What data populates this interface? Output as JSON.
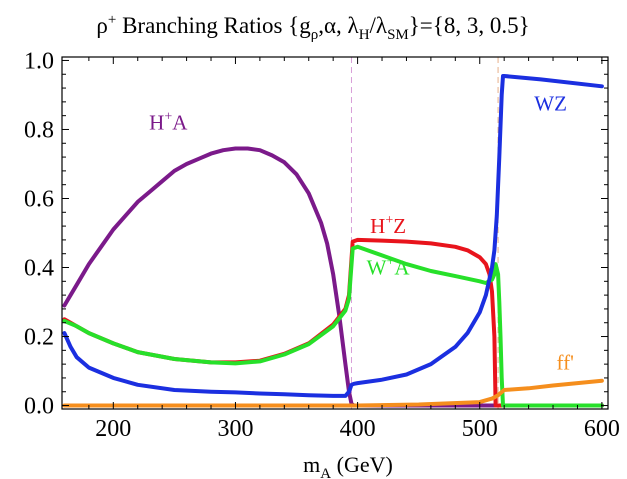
{
  "chart_data": {
    "type": "line",
    "title": "ρ⁺ Branching Ratios {gρ,α, λH/λSM}={8, 3, 0.5}",
    "title_parts": {
      "rho": "ρ",
      "rho_sup": "+",
      "text": " Branching Ratios {g",
      "g_sub": "ρ",
      "mid": ",α, λ",
      "h_sub": "H",
      "slash": "/λ",
      "sm_sub": "SM",
      "end": "}={8, 3, 0.5}"
    },
    "xlabel": "m_A (GeV)",
    "xlabel_parts": {
      "m": "m",
      "sub": "A",
      "rest": " (GeV)"
    },
    "ylabel": "",
    "xlim": [
      158,
      605
    ],
    "ylim": [
      -0.01,
      1.01
    ],
    "x_ticks": [
      200,
      300,
      400,
      500,
      600
    ],
    "y_ticks": [
      0.0,
      0.2,
      0.4,
      0.6,
      0.8,
      1.0
    ],
    "x_tick_labels": [
      "200",
      "300",
      "400",
      "500",
      "600"
    ],
    "y_tick_labels": [
      "0.0",
      "0.2",
      "0.4",
      "0.6",
      "0.8",
      "1.0"
    ],
    "vertical_lines": [
      {
        "x": 395,
        "color": "#d9a0d9"
      },
      {
        "x": 515,
        "color": "#e7b08a"
      }
    ],
    "series": [
      {
        "name": "H⁺A",
        "label_main": "H",
        "label_sup": "+",
        "label_rest": "A",
        "color": "#7b1a8a",
        "label_x": 245,
        "label_y": 0.8,
        "x": [
          160,
          170,
          180,
          190,
          200,
          210,
          220,
          230,
          240,
          250,
          260,
          270,
          280,
          290,
          300,
          310,
          320,
          330,
          340,
          350,
          360,
          370,
          375,
          380,
          385,
          390,
          393,
          395,
          397,
          400,
          420,
          450,
          500,
          550,
          600
        ],
        "y": [
          0.29,
          0.35,
          0.41,
          0.46,
          0.51,
          0.55,
          0.59,
          0.62,
          0.65,
          0.68,
          0.7,
          0.715,
          0.73,
          0.74,
          0.745,
          0.745,
          0.74,
          0.725,
          0.705,
          0.67,
          0.615,
          0.53,
          0.47,
          0.38,
          0.26,
          0.12,
          0.04,
          0.005,
          0.0,
          0.0,
          0.0,
          0.0,
          0.0,
          0.0,
          0.0
        ]
      },
      {
        "name": "H⁺Z",
        "label_main": "H",
        "label_sup": "+",
        "label_rest": "Z",
        "color": "#e8141c",
        "label_x": 425,
        "label_y": 0.5,
        "x": [
          160,
          170,
          180,
          200,
          220,
          250,
          280,
          300,
          320,
          340,
          360,
          380,
          390,
          393,
          396,
          400,
          420,
          440,
          460,
          480,
          490,
          500,
          505,
          508,
          510,
          512,
          513,
          515,
          520,
          550,
          600
        ],
        "y": [
          0.25,
          0.23,
          0.21,
          0.18,
          0.155,
          0.135,
          0.125,
          0.125,
          0.13,
          0.15,
          0.18,
          0.235,
          0.28,
          0.32,
          0.475,
          0.48,
          0.478,
          0.475,
          0.47,
          0.46,
          0.45,
          0.43,
          0.41,
          0.38,
          0.33,
          0.2,
          0.0,
          0.0,
          0.0,
          0.0,
          0.0
        ]
      },
      {
        "name": "W⁺A",
        "label_main": "W",
        "label_sup": "+",
        "label_rest": "A",
        "color": "#27e02a",
        "label_x": 425,
        "label_y": 0.38,
        "x": [
          160,
          170,
          180,
          200,
          220,
          250,
          280,
          300,
          320,
          340,
          360,
          380,
          390,
          393,
          396,
          400,
          420,
          440,
          460,
          480,
          500,
          505,
          510,
          512,
          513,
          515,
          516,
          517,
          518,
          519,
          520,
          550,
          600
        ],
        "y": [
          0.245,
          0.23,
          0.21,
          0.18,
          0.155,
          0.135,
          0.125,
          0.122,
          0.128,
          0.148,
          0.178,
          0.23,
          0.275,
          0.31,
          0.455,
          0.46,
          0.435,
          0.41,
          0.39,
          0.375,
          0.36,
          0.355,
          0.365,
          0.38,
          0.41,
          0.38,
          0.3,
          0.2,
          0.08,
          0.0,
          0.0,
          0.0,
          0.0
        ]
      },
      {
        "name": "WZ",
        "label_main": "WZ",
        "label_sup": "",
        "label_rest": "",
        "color": "#1b2fe0",
        "label_x": 558,
        "label_y": 0.855,
        "x": [
          160,
          165,
          170,
          180,
          200,
          220,
          250,
          280,
          300,
          320,
          340,
          360,
          380,
          390,
          393,
          395,
          397,
          400,
          420,
          440,
          460,
          480,
          490,
          500,
          505,
          510,
          512,
          514,
          516,
          518,
          519,
          520,
          550,
          600
        ],
        "y": [
          0.21,
          0.17,
          0.14,
          0.11,
          0.08,
          0.06,
          0.045,
          0.04,
          0.038,
          0.035,
          0.033,
          0.03,
          0.028,
          0.028,
          0.04,
          0.06,
          0.063,
          0.065,
          0.075,
          0.09,
          0.12,
          0.17,
          0.21,
          0.27,
          0.32,
          0.4,
          0.45,
          0.55,
          0.72,
          0.9,
          0.955,
          0.955,
          0.945,
          0.925
        ]
      },
      {
        "name": "ff'",
        "label_main": "ff'",
        "label_sup": "",
        "label_rest": "",
        "color": "#f58e1d",
        "label_x": 570,
        "label_y": 0.105,
        "x": [
          160,
          300,
          400,
          450,
          500,
          510,
          515,
          520,
          540,
          560,
          580,
          600
        ],
        "y": [
          0.0,
          0.0,
          0.0,
          0.003,
          0.01,
          0.02,
          0.03,
          0.045,
          0.05,
          0.058,
          0.065,
          0.072
        ]
      }
    ]
  }
}
